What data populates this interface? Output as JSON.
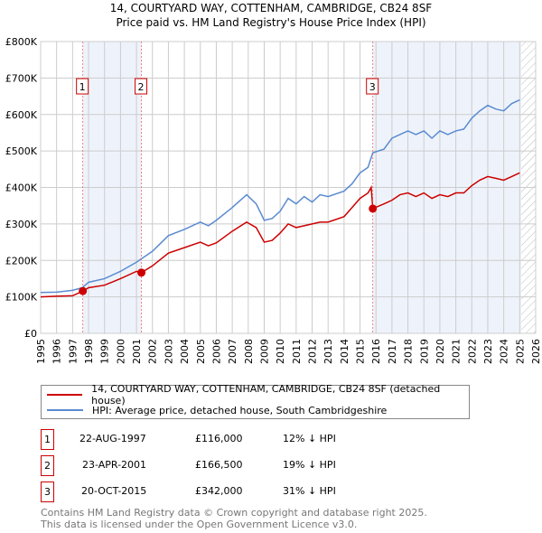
{
  "chart_data": {
    "type": "line",
    "title": "14, COURTYARD WAY, COTTENHAM, CAMBRIDGE, CB24 8SF",
    "subtitle": "Price paid vs. HM Land Registry's House Price Index (HPI)",
    "xlim": [
      1995,
      2026
    ],
    "ylim": [
      0,
      800000
    ],
    "x_ticks": [
      "1995",
      "1996",
      "1997",
      "1998",
      "1999",
      "2000",
      "2001",
      "2002",
      "2003",
      "2004",
      "2005",
      "2006",
      "2007",
      "2008",
      "2009",
      "2010",
      "2011",
      "2012",
      "2013",
      "2014",
      "2015",
      "2016",
      "2017",
      "2018",
      "2019",
      "2020",
      "2021",
      "2022",
      "2023",
      "2024",
      "2025",
      "2026"
    ],
    "y_ticks": [
      {
        "v": 0,
        "label": "£0"
      },
      {
        "v": 100000,
        "label": "£100K"
      },
      {
        "v": 200000,
        "label": "£200K"
      },
      {
        "v": 300000,
        "label": "£300K"
      },
      {
        "v": 400000,
        "label": "£400K"
      },
      {
        "v": 500000,
        "label": "£500K"
      },
      {
        "v": 600000,
        "label": "£600K"
      },
      {
        "v": 700000,
        "label": "£700K"
      },
      {
        "v": 800000,
        "label": "£800K"
      }
    ],
    "grid": true,
    "series": [
      {
        "name": "14, COURTYARD WAY, COTTENHAM, CAMBRIDGE, CB24 8SF (detached house)",
        "color": "#cc0000",
        "x": [
          1995,
          1996,
          1997,
          1997.64,
          1998,
          1999,
          2000,
          2001,
          2001.31,
          2002,
          2003,
          2004,
          2005,
          2005.5,
          2006,
          2007,
          2007.9,
          2008.5,
          2009,
          2009.5,
          2010,
          2010.5,
          2011,
          2011.5,
          2012,
          2012.5,
          2013,
          2014,
          2014.5,
          2015,
          2015.5,
          2015.7,
          2015.8,
          2016.5,
          2017,
          2017.5,
          2018,
          2018.5,
          2019,
          2019.5,
          2020,
          2020.5,
          2021,
          2021.5,
          2022,
          2022.5,
          2023,
          2023.5,
          2024,
          2024.5,
          2025
        ],
        "y": [
          100000,
          102000,
          103000,
          116000,
          125000,
          132000,
          150000,
          170000,
          166500,
          185000,
          220000,
          235000,
          250000,
          240000,
          248000,
          280000,
          305000,
          290000,
          250000,
          255000,
          275000,
          300000,
          290000,
          295000,
          300000,
          305000,
          305000,
          320000,
          345000,
          370000,
          385000,
          400000,
          342000,
          355000,
          365000,
          380000,
          385000,
          375000,
          385000,
          370000,
          380000,
          375000,
          385000,
          385000,
          405000,
          420000,
          430000,
          425000,
          420000,
          430000,
          440000
        ]
      },
      {
        "name": "HPI: Average price, detached house, South Cambridgeshire",
        "color": "#5b8bd0",
        "x": [
          1995,
          1996,
          1997,
          1997.6,
          1998,
          1999,
          2000,
          2001,
          2002,
          2003,
          2004,
          2005,
          2005.5,
          2006,
          2007,
          2007.9,
          2008.5,
          2009,
          2009.5,
          2010,
          2010.5,
          2011,
          2011.5,
          2012,
          2012.5,
          2013,
          2014,
          2014.5,
          2015,
          2015.5,
          2015.8,
          2016.5,
          2017,
          2017.5,
          2018,
          2018.5,
          2019,
          2019.5,
          2020,
          2020.5,
          2021,
          2021.5,
          2022,
          2022.5,
          2023,
          2023.5,
          2024,
          2024.5,
          2025
        ],
        "y": [
          112000,
          113000,
          118000,
          125000,
          140000,
          150000,
          170000,
          195000,
          225000,
          268000,
          285000,
          305000,
          295000,
          310000,
          345000,
          380000,
          355000,
          310000,
          315000,
          335000,
          370000,
          355000,
          375000,
          360000,
          380000,
          375000,
          390000,
          410000,
          440000,
          455000,
          495000,
          505000,
          535000,
          545000,
          555000,
          545000,
          555000,
          535000,
          555000,
          545000,
          555000,
          560000,
          590000,
          610000,
          625000,
          615000,
          610000,
          630000,
          640000
        ]
      }
    ],
    "sales": [
      {
        "n": "1",
        "x": 1997.64,
        "y": 116000,
        "date": "22-AUG-1997",
        "price": "£116,000",
        "hpi": "12% ↓ HPI"
      },
      {
        "n": "2",
        "x": 2001.31,
        "y": 166500,
        "date": "23-APR-2001",
        "price": "£166,500",
        "hpi": "19% ↓ HPI"
      },
      {
        "n": "3",
        "x": 2015.8,
        "y": 342000,
        "date": "20-OCT-2015",
        "price": "£342,000",
        "hpi": "31% ↓ HPI"
      }
    ],
    "hatch_from": 2025.1
  },
  "footer": {
    "line1": "Contains HM Land Registry data © Crown copyright and database right 2025.",
    "line2": "This data is licensed under the Open Government Licence v3.0."
  }
}
